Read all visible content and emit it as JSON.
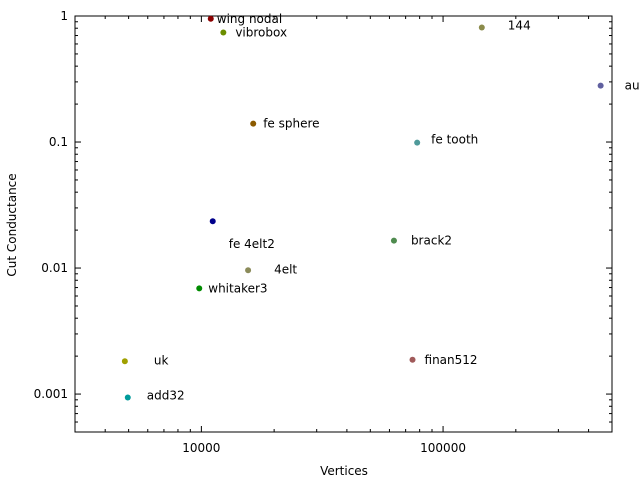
{
  "chart_data": {
    "type": "scatter",
    "title": "",
    "xlabel": "Vertices",
    "ylabel": "Cut Conductance",
    "xscale": "log",
    "yscale": "log",
    "xlim": [
      3000,
      500000
    ],
    "ylim": [
      0.0005,
      1.0
    ],
    "xticks": [
      {
        "value": 10000,
        "label": "10000"
      },
      {
        "value": 100000,
        "label": "100000"
      }
    ],
    "yticks": [
      {
        "value": 1,
        "label": "1"
      },
      {
        "value": 0.1,
        "label": "0.1"
      },
      {
        "value": 0.01,
        "label": "0.01"
      },
      {
        "value": 0.001,
        "label": "0.001"
      }
    ],
    "grid": false,
    "legend": "none",
    "points": [
      {
        "label": "wing nodal",
        "x": 10937,
        "y": 0.95,
        "color": "#8b0000"
      },
      {
        "label": "vibrobox",
        "x": 12328,
        "y": 0.74,
        "color": "#6b8e00"
      },
      {
        "label": "144",
        "x": 144649,
        "y": 0.81,
        "color": "#8b8b4b"
      },
      {
        "label": "auto",
        "x": 448695,
        "y": 0.28,
        "color": "#6060a0"
      },
      {
        "label": "fe sphere",
        "x": 16386,
        "y": 0.14,
        "color": "#8b5a00"
      },
      {
        "label": "fe tooth",
        "x": 78136,
        "y": 0.099,
        "color": "#4f9a9a"
      },
      {
        "label": "",
        "x": 11143,
        "y": 0.0235,
        "color": "#00008b"
      },
      {
        "label": "brack2",
        "x": 62631,
        "y": 0.0165,
        "color": "#4f8b4f"
      },
      {
        "label": "fe 4elt2",
        "x": 11143,
        "y": 0.0155,
        "color": ""
      },
      {
        "label": "4elt",
        "x": 15606,
        "y": 0.0096,
        "color": "#8b8b5a"
      },
      {
        "label": "whitaker3",
        "x": 9800,
        "y": 0.0069,
        "color": "#008b00"
      },
      {
        "label": "uk",
        "x": 4824,
        "y": 0.00182,
        "color": "#a0a000"
      },
      {
        "label": "finan512",
        "x": 74752,
        "y": 0.00187,
        "color": "#a05a5a"
      },
      {
        "label": "add32",
        "x": 4960,
        "y": 0.00094,
        "color": "#009b9b"
      }
    ]
  }
}
